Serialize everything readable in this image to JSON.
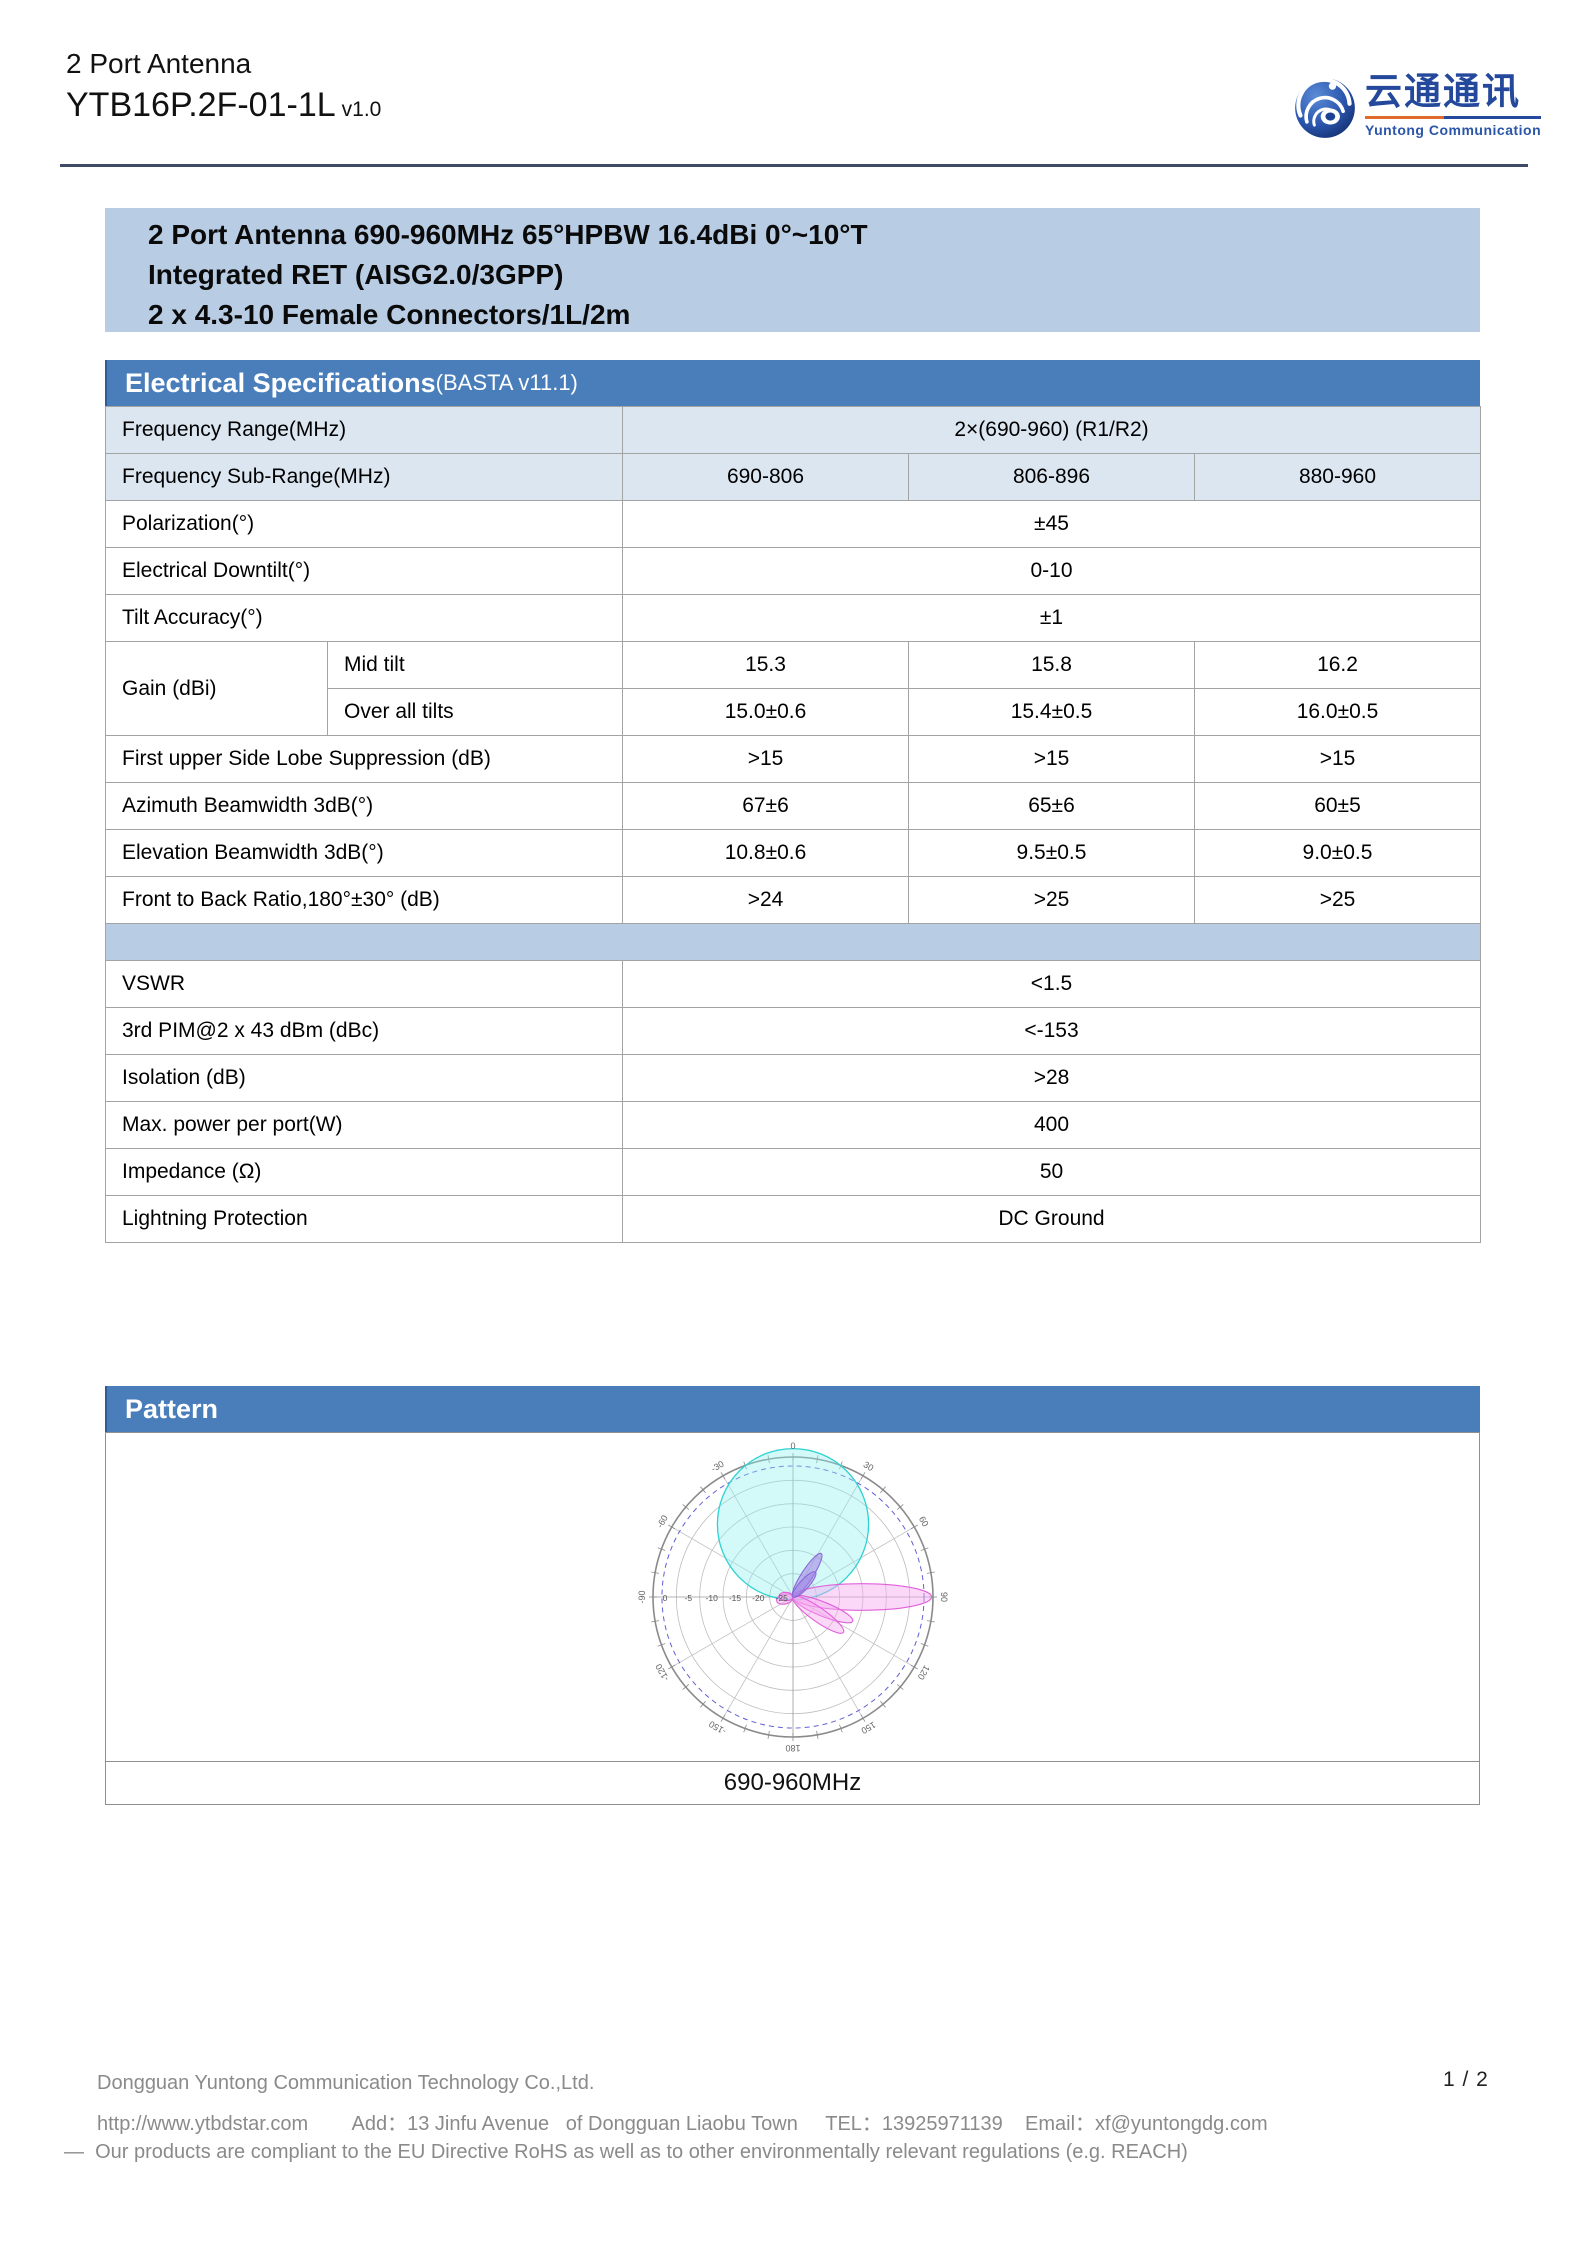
{
  "header": {
    "product_line": "2 Port Antenna",
    "model": "YTB16P.2F-01-1L",
    "version": "v1.0",
    "logo": {
      "cn": "云通通讯",
      "en": "Yuntong Communication"
    }
  },
  "summary": {
    "line1": "2 Port Antenna 690-960MHz 65°HPBW 16.4dBi 0°~10°T",
    "line2": "Integrated RET (AISG2.0/3GPP)",
    "line3": "2 x 4.3-10 Female Connectors/1L/2m"
  },
  "electrical": {
    "title": "Electrical Specifications",
    "subtitle": "(BASTA v11.1)",
    "rows": [
      {
        "shaded": true,
        "cells": [
          {
            "t": "Frequency Range(MHz)",
            "c": 2,
            "a": "l"
          },
          {
            "t": "2×(690-960) (R1/R2)",
            "c": 3
          }
        ]
      },
      {
        "shaded": true,
        "cells": [
          {
            "t": "Frequency Sub-Range(MHz)",
            "c": 2,
            "a": "l"
          },
          {
            "t": "690-806"
          },
          {
            "t": "806-896"
          },
          {
            "t": "880-960"
          }
        ]
      },
      {
        "cells": [
          {
            "t": "Polarization(°)",
            "c": 2,
            "a": "l"
          },
          {
            "t": "±45",
            "c": 3
          }
        ]
      },
      {
        "cells": [
          {
            "t": "Electrical Downtilt(°)",
            "c": 2,
            "a": "l"
          },
          {
            "t": "0-10",
            "c": 3
          }
        ]
      },
      {
        "cells": [
          {
            "t": "Tilt Accuracy(°)",
            "c": 2,
            "a": "l"
          },
          {
            "t": "±1",
            "c": 3
          }
        ]
      },
      {
        "cells": [
          {
            "t": "Gain (dBi)",
            "r": 2,
            "a": "l"
          },
          {
            "t": "Mid tilt",
            "a": "l"
          },
          {
            "t": "15.3"
          },
          {
            "t": "15.8"
          },
          {
            "t": "16.2"
          }
        ]
      },
      {
        "cells": [
          {
            "t": "Over all tilts",
            "a": "l"
          },
          {
            "t": "15.0±0.6"
          },
          {
            "t": "15.4±0.5"
          },
          {
            "t": "16.0±0.5"
          }
        ]
      },
      {
        "cells": [
          {
            "t": "First upper Side Lobe Suppression (dB)",
            "c": 2,
            "a": "l"
          },
          {
            "t": ">15"
          },
          {
            "t": ">15"
          },
          {
            "t": ">15"
          }
        ]
      },
      {
        "cells": [
          {
            "t": "Azimuth Beamwidth 3dB(°)",
            "c": 2,
            "a": "l"
          },
          {
            "t": "67±6"
          },
          {
            "t": "65±6"
          },
          {
            "t": "60±5"
          }
        ]
      },
      {
        "cells": [
          {
            "t": "Elevation Beamwidth 3dB(°)",
            "c": 2,
            "a": "l"
          },
          {
            "t": "10.8±0.6"
          },
          {
            "t": "9.5±0.5"
          },
          {
            "t": "9.0±0.5"
          }
        ]
      },
      {
        "cells": [
          {
            "t": "Front to Back Ratio,180°±30° (dB)",
            "c": 2,
            "a": "l"
          },
          {
            "t": ">24"
          },
          {
            "t": ">25"
          },
          {
            "t": ">25"
          }
        ]
      },
      {
        "band": true,
        "cells": [
          {
            "t": "",
            "c": 5
          }
        ]
      },
      {
        "cells": [
          {
            "t": "VSWR",
            "c": 2,
            "a": "l"
          },
          {
            "t": "<1.5",
            "c": 3
          }
        ]
      },
      {
        "cells": [
          {
            "t": "3rd PIM@2 x 43 dBm (dBc)",
            "c": 2,
            "a": "l"
          },
          {
            "t": "<-153",
            "c": 3
          }
        ]
      },
      {
        "cells": [
          {
            "t": "Isolation (dB)",
            "c": 2,
            "a": "l"
          },
          {
            "t": ">28",
            "c": 3
          }
        ]
      },
      {
        "cells": [
          {
            "t": "Max. power per port(W)",
            "c": 2,
            "a": "l"
          },
          {
            "t": "400",
            "c": 3
          }
        ]
      },
      {
        "cells": [
          {
            "t": "Impedance (Ω)",
            "c": 2,
            "a": "l"
          },
          {
            "t": "50",
            "c": 3
          }
        ]
      },
      {
        "cells": [
          {
            "t": "Lightning Protection",
            "c": 2,
            "a": "l"
          },
          {
            "t": "DC Ground",
            "c": 3
          }
        ]
      }
    ]
  },
  "pattern": {
    "title": "Pattern",
    "caption": "690-960MHz"
  },
  "chart_data": {
    "type": "polar-antenna-pattern",
    "title": "690-960MHz",
    "angle_labels_deg": [
      0,
      30,
      60,
      90,
      120,
      150,
      180,
      -150,
      -120,
      -90,
      -60,
      -30
    ],
    "angle_tick_step_deg": 10,
    "radial_ticks_db": [
      0,
      -5,
      -10,
      -15,
      -20,
      -25
    ],
    "radial_center_db": -30,
    "reference_circle_frac": 0.936,
    "azimuth_blob": {
      "name": "azimuth-pattern",
      "center_offset_frac": 0.52,
      "radius_frac": 0.54,
      "stroke": "#2fd2d2",
      "fill": "rgba(140,240,240,0.38)"
    },
    "lobes": [
      {
        "name": "elevation-main-lobe",
        "deg": 90,
        "len": 0.99,
        "halfwidth": 0.095,
        "stroke": "#e060da",
        "fill": "rgba(246,168,240,0.45)"
      },
      {
        "name": "elevation-side-lobe-1",
        "deg": 112,
        "len": 0.46,
        "halfwidth": 0.05,
        "stroke": "#e060da",
        "fill": "rgba(246,168,240,0.45)"
      },
      {
        "name": "elevation-side-lobe-2",
        "deg": 125,
        "len": 0.44,
        "halfwidth": 0.05,
        "stroke": "#e060da",
        "fill": "rgba(246,168,240,0.45)"
      },
      {
        "name": "elevation-back-lobe-1",
        "deg": 256,
        "len": 0.12,
        "halfwidth": 0.035,
        "stroke": "#e060da",
        "fill": "rgba(246,168,240,0.45)"
      },
      {
        "name": "elevation-back-lobe-2",
        "deg": 274,
        "len": 0.1,
        "halfwidth": 0.03,
        "stroke": "#e060da",
        "fill": "rgba(246,168,240,0.45)"
      },
      {
        "name": "upper-lobe-1",
        "deg": 33,
        "len": 0.37,
        "halfwidth": 0.04,
        "stroke": "#8a68d8",
        "fill": "rgba(160,130,230,0.55)"
      },
      {
        "name": "upper-lobe-2",
        "deg": 42,
        "len": 0.24,
        "halfwidth": 0.033,
        "stroke": "#8a68d8",
        "fill": "rgba(160,130,230,0.55)"
      }
    ]
  },
  "footer": {
    "line1": "Dongguan Yuntong Communication Technology Co.,Ltd.",
    "line2": "http://www.ytbdstar.com        Add：13 Jinfu Avenue   of Dongguan Liaobu Town     TEL：13925971139    Email：xf@yuntongdg.com",
    "line3": "—  Our products are compliant to the EU Directive RoHS as well as to other environmentally relevant regulations (e.g. REACH)",
    "page_num": "1 / 2"
  },
  "colors": {
    "section_bar": "#4a7ebb",
    "summary_band": "#b8cce4",
    "row_tint": "#dce6f1",
    "logo_blue": "#24489c",
    "logo_orange": "#e06a2b"
  }
}
